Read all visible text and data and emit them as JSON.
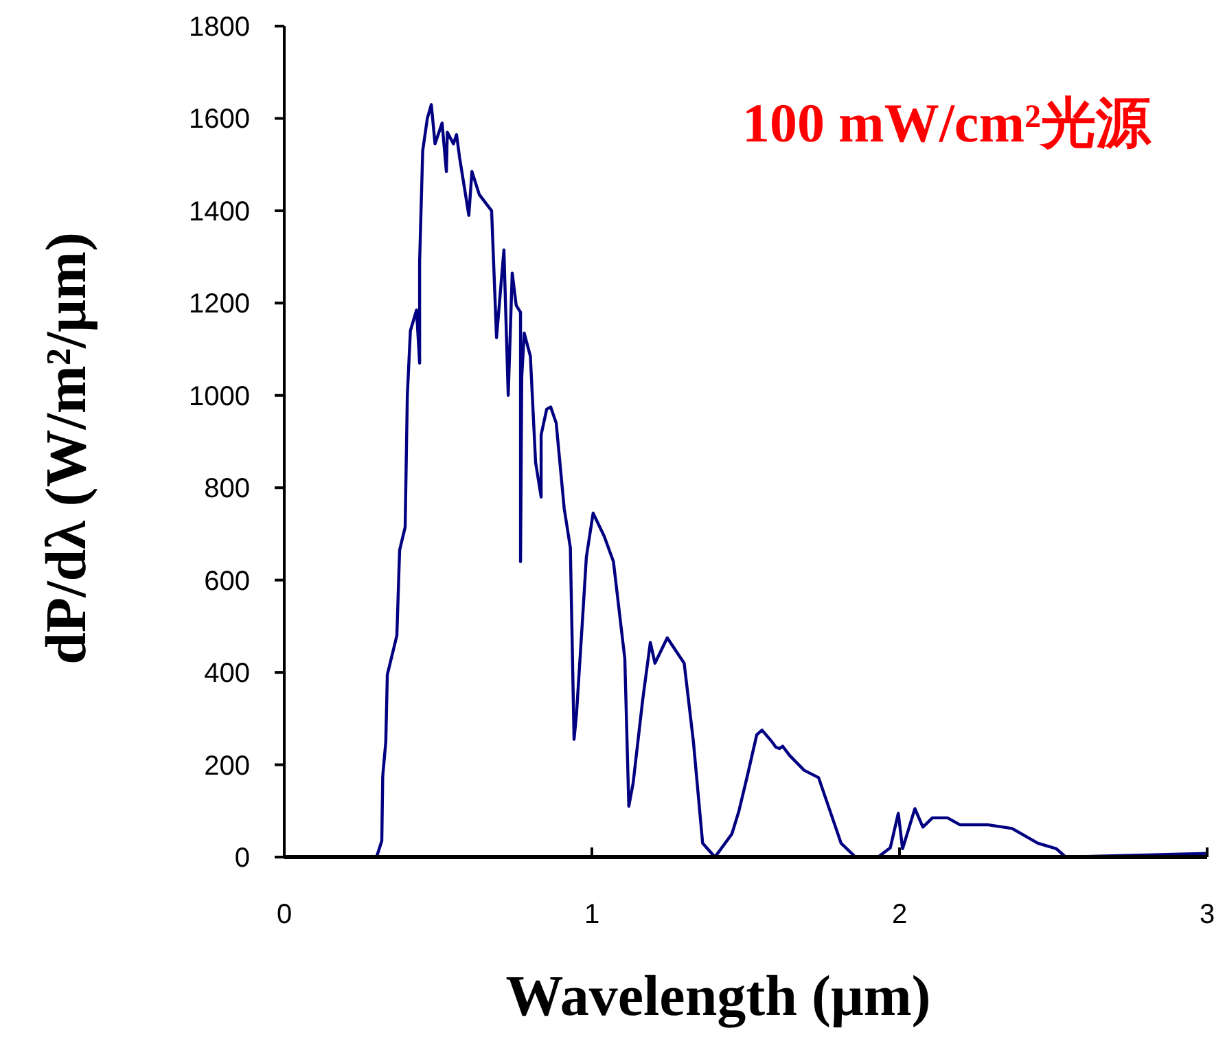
{
  "chart_data": {
    "type": "line",
    "xlabel": "Wavelength (μm)",
    "ylabel": "dP/dλ (W/m²/μm)",
    "annotations": [
      "100 mW/cm²光源"
    ],
    "xlim": [
      0,
      3
    ],
    "xticks": [
      0,
      1,
      2,
      3
    ],
    "ylim": [
      0,
      1800
    ],
    "yticks": [
      0,
      200,
      400,
      600,
      800,
      1000,
      1200,
      1400,
      1600,
      1800
    ],
    "grid": false,
    "marker": "none",
    "line_style": "solid",
    "series": [
      {
        "color": "#000080",
        "x": [
          0.3,
          0.317,
          0.32,
          0.33,
          0.335,
          0.366,
          0.375,
          0.393,
          0.4,
          0.41,
          0.43,
          0.44,
          0.44,
          0.45,
          0.465,
          0.478,
          0.49,
          0.513,
          0.527,
          0.53,
          0.55,
          0.56,
          0.57,
          0.6,
          0.61,
          0.634,
          0.674,
          0.69,
          0.714,
          0.728,
          0.741,
          0.754,
          0.768,
          0.768,
          0.772,
          0.78,
          0.8,
          0.817,
          0.835,
          0.835,
          0.853,
          0.866,
          0.884,
          0.91,
          0.93,
          0.942,
          0.95,
          0.97,
          0.982,
          1.004,
          1.04,
          1.07,
          1.107,
          1.12,
          1.134,
          1.165,
          1.19,
          1.205,
          1.245,
          1.3,
          1.33,
          1.36,
          1.4,
          1.455,
          1.478,
          1.505,
          1.536,
          1.553,
          1.585,
          1.598,
          1.61,
          1.62,
          1.643,
          1.69,
          1.737,
          1.81,
          1.857,
          1.93,
          1.97,
          1.996,
          2.01,
          2.05,
          2.076,
          2.107,
          2.156,
          2.196,
          2.286,
          2.366,
          2.45,
          2.51,
          2.54,
          3.0
        ],
        "values": [
          0,
          35,
          175,
          250,
          395,
          480,
          665,
          715,
          1000,
          1140,
          1185,
          1070,
          1290,
          1530,
          1600,
          1630,
          1545,
          1590,
          1485,
          1570,
          1545,
          1565,
          1515,
          1390,
          1485,
          1435,
          1400,
          1125,
          1315,
          1000,
          1265,
          1195,
          1180,
          640,
          1040,
          1135,
          1085,
          855,
          780,
          915,
          970,
          975,
          940,
          755,
          670,
          255,
          310,
          520,
          650,
          745,
          695,
          640,
          430,
          110,
          160,
          340,
          465,
          420,
          475,
          420,
          250,
          30,
          0,
          50,
          100,
          175,
          265,
          275,
          250,
          238,
          235,
          240,
          220,
          188,
          172,
          30,
          0,
          0,
          20,
          95,
          18,
          105,
          65,
          85,
          85,
          70,
          70,
          62,
          30,
          18,
          0,
          8
        ]
      }
    ]
  }
}
